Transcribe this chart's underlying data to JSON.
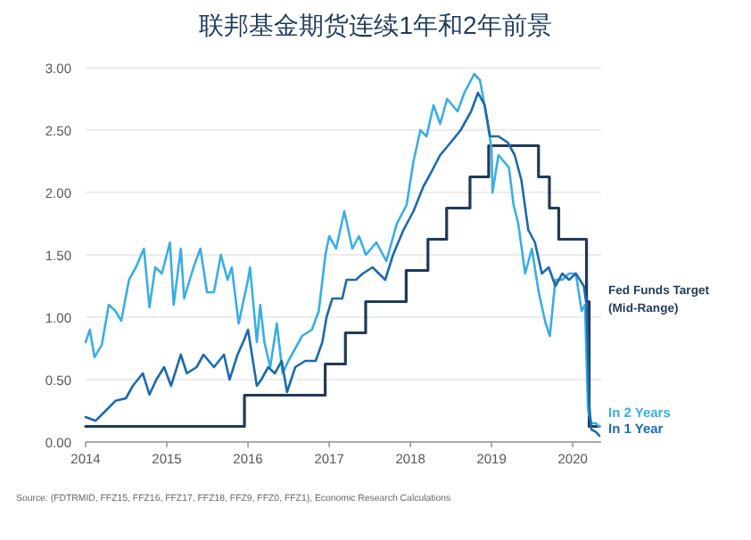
{
  "chart_data": {
    "type": "line",
    "title": "联邦基金期货连续1年和2年前景",
    "xlim": [
      "2014-01-01",
      "2020-05-08"
    ],
    "xticks": [
      "2014",
      "2015",
      "2016",
      "2017",
      "2018",
      "2019",
      "2020"
    ],
    "ylim": [
      0,
      3
    ],
    "yticks": [
      {
        "value": 0,
        "label": "0.00"
      },
      {
        "value": 0.5,
        "label": "0.50"
      },
      {
        "value": 1,
        "label": "1.00"
      },
      {
        "value": 1.5,
        "label": "1.50"
      },
      {
        "value": 2,
        "label": "2.00"
      },
      {
        "value": 2.5,
        "label": "2.50"
      },
      {
        "value": 3,
        "label": "3.00"
      }
    ],
    "grid": "y",
    "series": [
      {
        "name": "Fed Funds Target (Mid-Range)",
        "type": "step",
        "color": "#1f3a5a",
        "x": [
          "2014-01-01",
          "2015-12-16",
          "2016-12-14",
          "2017-03-15",
          "2017-06-14",
          "2017-12-13",
          "2018-03-21",
          "2018-06-13",
          "2018-09-26",
          "2018-12-19",
          "2019-07-31",
          "2019-09-18",
          "2019-10-30",
          "2020-03-03",
          "2020-03-15",
          "2020-04-30"
        ],
        "values": [
          0.125,
          0.375,
          0.625,
          0.875,
          1.125,
          1.375,
          1.625,
          1.875,
          2.125,
          2.375,
          2.125,
          1.875,
          1.625,
          1.125,
          0.125,
          0.125
        ]
      },
      {
        "name": "In 2 Years",
        "color": "#3aaee3",
        "x": [
          "2014-01-01",
          "2014-01-20",
          "2014-02-10",
          "2014-03-15",
          "2014-04-15",
          "2014-05-15",
          "2014-06-10",
          "2014-07-15",
          "2014-08-15",
          "2014-09-20",
          "2014-10-15",
          "2014-11-10",
          "2014-12-10",
          "2015-01-15",
          "2015-02-01",
          "2015-03-05",
          "2015-03-20",
          "2015-05-01",
          "2015-06-01",
          "2015-07-01",
          "2015-08-01",
          "2015-09-01",
          "2015-10-01",
          "2015-10-20",
          "2015-11-20",
          "2016-01-01",
          "2016-01-10",
          "2016-02-10",
          "2016-02-25",
          "2016-03-15",
          "2016-04-10",
          "2016-05-10",
          "2016-06-05",
          "2016-07-01",
          "2016-08-01",
          "2016-09-01",
          "2016-10-15",
          "2016-11-15",
          "2016-12-15",
          "2017-01-01",
          "2017-02-01",
          "2017-03-10",
          "2017-04-15",
          "2017-05-15",
          "2017-06-15",
          "2017-08-01",
          "2017-09-15",
          "2017-11-01",
          "2017-12-15",
          "2018-01-15",
          "2018-02-15",
          "2018-03-15",
          "2018-04-15",
          "2018-05-15",
          "2018-06-15",
          "2018-08-01",
          "2018-09-01",
          "2018-10-15",
          "2018-11-10",
          "2018-12-10",
          "2019-01-01",
          "2019-01-05",
          "2019-02-01",
          "2019-03-20",
          "2019-04-10",
          "2019-05-01",
          "2019-06-01",
          "2019-07-01",
          "2019-08-01",
          "2019-09-01",
          "2019-09-20",
          "2019-10-15",
          "2019-11-15",
          "2019-12-15",
          "2020-01-15",
          "2020-02-10",
          "2020-02-25",
          "2020-03-10",
          "2020-03-25",
          "2020-04-15",
          "2020-04-30"
        ],
        "values": [
          0.8,
          0.9,
          0.68,
          0.78,
          1.1,
          1.05,
          0.97,
          1.3,
          1.4,
          1.55,
          1.08,
          1.4,
          1.35,
          1.6,
          1.1,
          1.55,
          1.15,
          1.4,
          1.55,
          1.2,
          1.2,
          1.5,
          1.3,
          1.4,
          0.95,
          1.3,
          1.4,
          0.8,
          1.1,
          0.8,
          0.6,
          0.95,
          0.55,
          0.65,
          0.75,
          0.85,
          0.9,
          1.05,
          1.5,
          1.65,
          1.55,
          1.85,
          1.55,
          1.65,
          1.5,
          1.6,
          1.45,
          1.75,
          1.9,
          2.25,
          2.5,
          2.45,
          2.7,
          2.55,
          2.75,
          2.65,
          2.8,
          2.95,
          2.9,
          2.6,
          2.35,
          2.0,
          2.3,
          2.2,
          1.9,
          1.75,
          1.35,
          1.55,
          1.2,
          0.95,
          0.85,
          1.3,
          1.3,
          1.35,
          1.35,
          1.05,
          1.1,
          0.25,
          0.15,
          0.15,
          0.12
        ]
      },
      {
        "name": "In 1 Year",
        "color": "#1c6aad",
        "x": [
          "2014-01-01",
          "2014-02-15",
          "2014-04-01",
          "2014-05-15",
          "2014-07-01",
          "2014-08-01",
          "2014-09-15",
          "2014-10-15",
          "2014-11-15",
          "2014-12-20",
          "2015-01-20",
          "2015-03-05",
          "2015-04-01",
          "2015-05-15",
          "2015-06-15",
          "2015-08-01",
          "2015-09-15",
          "2015-10-10",
          "2015-11-15",
          "2015-12-15",
          "2016-01-01",
          "2016-02-10",
          "2016-03-01",
          "2016-04-01",
          "2016-05-01",
          "2016-06-01",
          "2016-06-25",
          "2016-08-01",
          "2016-09-15",
          "2016-11-01",
          "2016-12-01",
          "2016-12-20",
          "2017-01-15",
          "2017-03-01",
          "2017-03-20",
          "2017-05-01",
          "2017-06-01",
          "2017-07-15",
          "2017-09-10",
          "2017-10-15",
          "2017-12-01",
          "2018-01-15",
          "2018-03-01",
          "2018-04-01",
          "2018-05-15",
          "2018-07-01",
          "2018-08-15",
          "2018-10-01",
          "2018-11-01",
          "2018-12-01",
          "2018-12-25",
          "2019-02-01",
          "2019-03-15",
          "2019-04-15",
          "2019-05-15",
          "2019-06-15",
          "2019-07-15",
          "2019-08-15",
          "2019-09-15",
          "2019-10-15",
          "2019-11-15",
          "2019-12-15",
          "2020-01-15",
          "2020-02-20",
          "2020-03-03",
          "2020-03-15",
          "2020-03-25",
          "2020-04-15",
          "2020-04-30"
        ],
        "values": [
          0.2,
          0.17,
          0.25,
          0.33,
          0.35,
          0.45,
          0.55,
          0.38,
          0.5,
          0.6,
          0.45,
          0.7,
          0.55,
          0.6,
          0.7,
          0.6,
          0.7,
          0.5,
          0.7,
          0.82,
          0.9,
          0.45,
          0.5,
          0.6,
          0.55,
          0.65,
          0.4,
          0.6,
          0.65,
          0.65,
          0.8,
          1.0,
          1.15,
          1.15,
          1.3,
          1.3,
          1.35,
          1.4,
          1.3,
          1.5,
          1.7,
          1.85,
          2.05,
          2.15,
          2.3,
          2.4,
          2.5,
          2.65,
          2.8,
          2.7,
          2.45,
          2.45,
          2.4,
          2.3,
          2.1,
          1.7,
          1.6,
          1.35,
          1.4,
          1.25,
          1.35,
          1.3,
          1.35,
          1.25,
          1.1,
          0.3,
          0.1,
          0.08,
          0.05
        ]
      }
    ],
    "annotations": [
      "Source: (FDTRMID, FFZ15, FFZ16, FFZ17, FFZ18, FFZ9, FFZ0, FFZ1), Economic Research Calculations"
    ]
  }
}
